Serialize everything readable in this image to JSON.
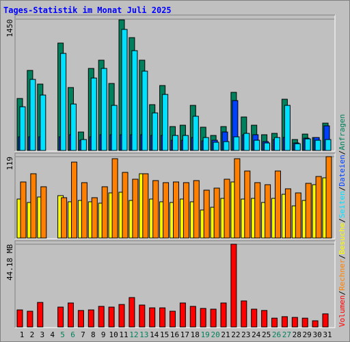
{
  "chart_data": [
    {
      "type": "bar",
      "title": "Tages-Statistik im Monat Juli 2025",
      "ylim": [
        0,
        1450
      ],
      "yticks": [
        1450
      ],
      "series": [
        {
          "name": "Anfragen",
          "color": "#00805C",
          "values": [
            574,
            884,
            733,
            0,
            1186,
            695,
            204,
            906,
            997,
            740,
            1442,
            1246,
            997,
            506,
            717,
            264,
            279,
            498,
            257,
            166,
            264,
            642,
            370,
            279,
            174,
            189,
            566,
            121,
            181,
            143,
            302
          ]
        },
        {
          "name": "Dateien",
          "color": "#0040FF",
          "values": [
            151,
            151,
            151,
            0,
            151,
            174,
            113,
            151,
            174,
            174,
            174,
            174,
            174,
            166,
            166,
            113,
            113,
            144,
            106,
            113,
            204,
            551,
            174,
            174,
            98,
            121,
            144,
            83,
            136,
            143,
            272
          ]
        },
        {
          "name": "Seiten",
          "color": "#00E0FF",
          "values": [
            483,
            785,
            612,
            0,
            1072,
            513,
            121,
            800,
            906,
            498,
            1337,
            1102,
            876,
            415,
            619,
            166,
            166,
            378,
            143,
            91,
            98,
            151,
            189,
            113,
            83,
            143,
            498,
            75,
            128,
            113,
            121
          ]
        }
      ]
    },
    {
      "type": "bar",
      "ylim": [
        0,
        119
      ],
      "yticks": [
        119
      ],
      "series": [
        {
          "name": "Besuche",
          "color": "#FFFF00",
          "values": [
            57,
            52,
            60,
            0,
            62,
            53,
            55,
            53,
            51,
            66,
            67,
            55,
            94,
            57,
            53,
            52,
            57,
            53,
            41,
            45,
            58,
            82,
            57,
            58,
            52,
            58,
            64,
            47,
            55,
            78,
            88
          ]
        },
        {
          "name": "Rechner",
          "color": "#FF8000",
          "values": [
            82,
            94,
            75,
            0,
            59,
            111,
            81,
            59,
            75,
            116,
            96,
            86,
            94,
            84,
            81,
            82,
            81,
            84,
            70,
            73,
            86,
            116,
            98,
            81,
            78,
            98,
            72,
            66,
            80,
            90,
            119
          ]
        }
      ]
    },
    {
      "type": "bar",
      "ylim": [
        0,
        44.18
      ],
      "yticks": [
        {
          "value": 44.18,
          "label": "44.18 MB"
        }
      ],
      "categories": [
        "1",
        "2",
        "3",
        "4",
        "5",
        "6",
        "7",
        "8",
        "9",
        "10",
        "11",
        "12",
        "13",
        "14",
        "15",
        "16",
        "17",
        "18",
        "19",
        "20",
        "21",
        "22",
        "23",
        "24",
        "25",
        "26",
        "27",
        "28",
        "29",
        "30",
        "31"
      ],
      "category_colors": [
        "#000000",
        "#000000",
        "#000000",
        "#000000",
        "#00805C",
        "#00805C",
        "#000000",
        "#000000",
        "#000000",
        "#000000",
        "#000000",
        "#00805C",
        "#00805C",
        "#000000",
        "#000000",
        "#000000",
        "#000000",
        "#000000",
        "#00805C",
        "#00805C",
        "#000000",
        "#000000",
        "#000000",
        "#000000",
        "#000000",
        "#00805C",
        "#00805C",
        "#000000",
        "#000000",
        "#000000",
        "#000000"
      ],
      "legend_separator": "/",
      "series": [
        {
          "name": "Volumen",
          "color": "#FF0000",
          "values": [
            9.1,
            8.4,
            13.1,
            0,
            10.6,
            12.8,
            8.8,
            9.1,
            11.0,
            10.6,
            12.0,
            15.7,
            11.7,
            10.2,
            10.2,
            8.4,
            12.8,
            11.0,
            9.9,
            9.5,
            12.8,
            44.18,
            13.9,
            9.5,
            8.8,
            4.7,
            5.5,
            5.1,
            4.7,
            3.3,
            7.0
          ]
        }
      ]
    }
  ]
}
